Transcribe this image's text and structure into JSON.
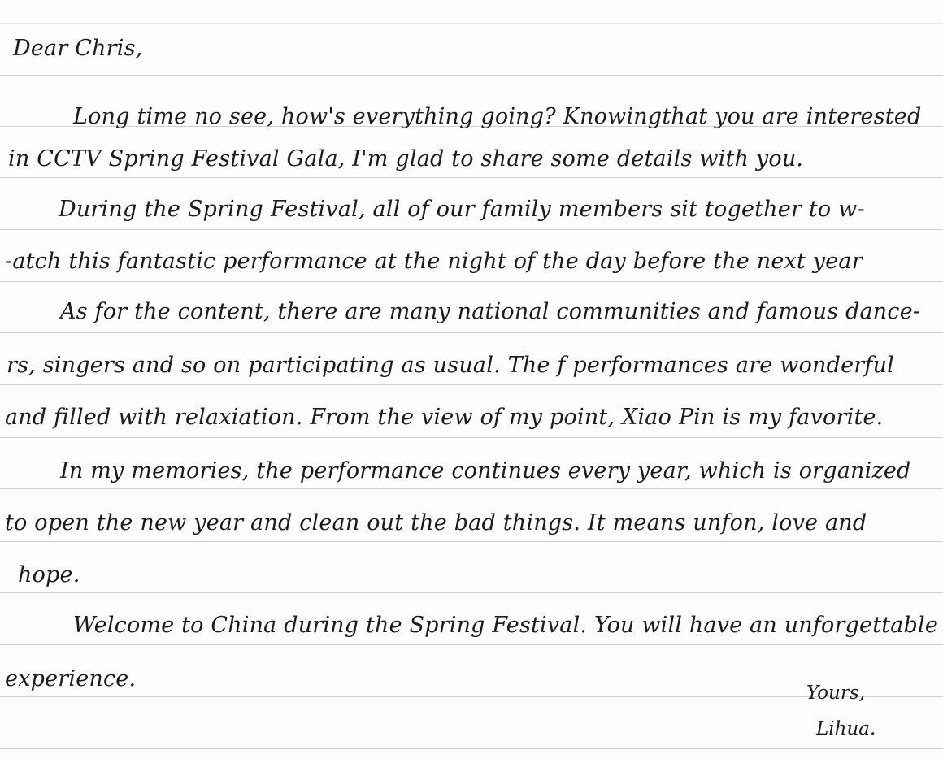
{
  "letter": {
    "salutation": "Dear Chris,",
    "lines": [
      "Long time no see, how's everything going? Knowingthat you are interested",
      "in CCTV Spring Festival Gala, I'm glad to share some details with you.",
      "During the Spring Festival, all of our family members sit together to w-",
      "-atch this fantastic performance at the night of the day before the next year",
      "As for the content, there are many national communities and famous dance-",
      "rs, singers and so on participating as usual. The f performances are wonderful",
      "and filled with relaxiation. From the view of my point, Xiao Pin is my favorite.",
      "In my memories, the performance continues every year, which is organized",
      "to open the new year and clean out the bad things. It means unfon, love and",
      "hope.",
      "Welcome to China during the Spring Festival. You will have an unforgettable",
      "experience."
    ],
    "closing": "Yours,",
    "signature": "Lihua."
  }
}
